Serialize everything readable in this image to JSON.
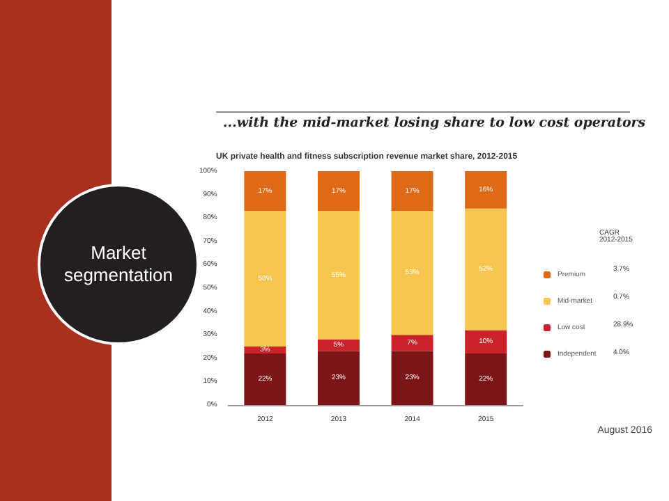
{
  "chart_data": {
    "type": "bar",
    "stacked": true,
    "title": "...with the mid-market losing share to low cost operators",
    "subtitle": "UK private health and fitness subscription revenue market share, 2012-2015",
    "categories": [
      "2012",
      "2013",
      "2014",
      "2015"
    ],
    "series": [
      {
        "name": "Independent",
        "color": "#7d1518",
        "values": [
          22,
          23,
          23,
          22
        ],
        "value_labels": [
          "22%",
          "23%",
          "23%",
          "22%"
        ]
      },
      {
        "name": "Low cost",
        "color": "#cc2229",
        "values": [
          3,
          5,
          7,
          10
        ],
        "value_labels": [
          "3%",
          "5%",
          "7%",
          "10%"
        ]
      },
      {
        "name": "Mid-market",
        "color": "#f6c64e",
        "values": [
          58,
          55,
          53,
          52
        ],
        "value_labels": [
          "58%",
          "55%",
          "53%",
          "52%"
        ]
      },
      {
        "name": "Premium",
        "color": "#de6a17",
        "values": [
          17,
          17,
          17,
          16
        ],
        "value_labels": [
          "17%",
          "17%",
          "17%",
          "16%"
        ]
      }
    ],
    "ylim": [
      0,
      100
    ],
    "yticks": [
      {
        "value": 0,
        "label": "0%"
      },
      {
        "value": 10,
        "label": "10%"
      },
      {
        "value": 20,
        "label": "20%"
      },
      {
        "value": 30,
        "label": "30%"
      },
      {
        "value": 40,
        "label": "40%"
      },
      {
        "value": 50,
        "label": "50%"
      },
      {
        "value": 60,
        "label": "60%"
      },
      {
        "value": 70,
        "label": "70%"
      },
      {
        "value": 80,
        "label": "80%"
      },
      {
        "value": 90,
        "label": "90%"
      },
      {
        "value": 100,
        "label": "100%"
      }
    ],
    "grid": false,
    "legend": "right",
    "annotations": [
      "CAGR 2012-2015",
      "4.0%",
      "28.9%",
      "0.7%",
      "3.7%",
      "Market segmentation",
      "August 2016"
    ]
  }
}
